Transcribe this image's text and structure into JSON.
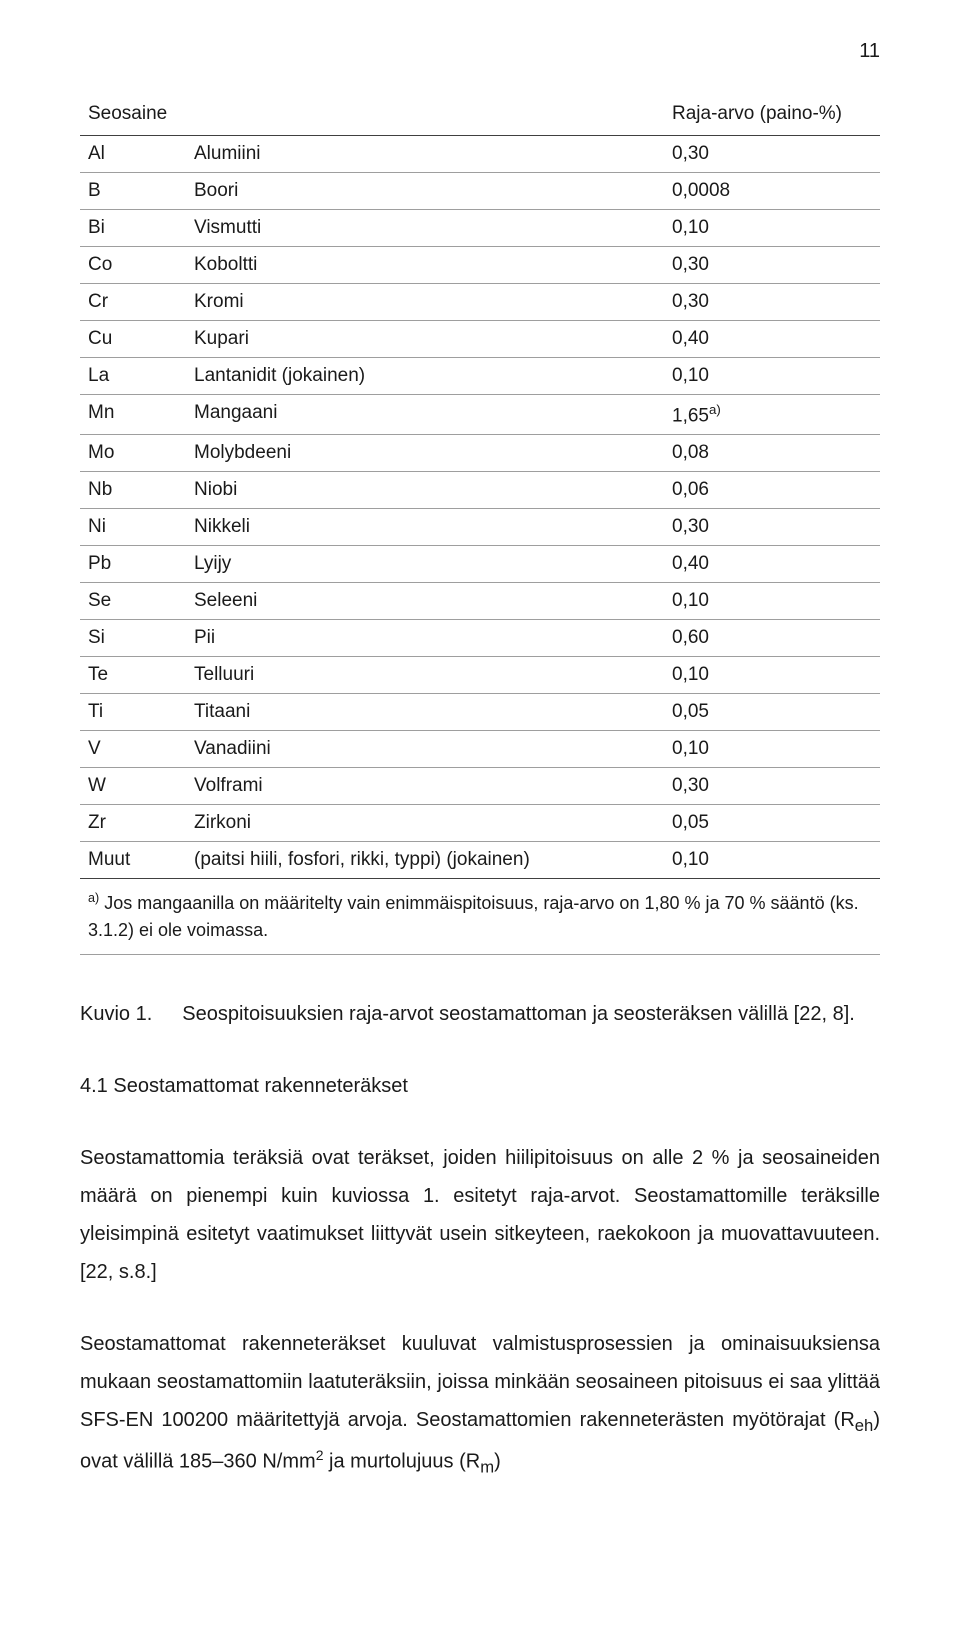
{
  "page_number": "11",
  "table": {
    "header_col1": "Seosaine",
    "header_col2": "Raja-arvo (paino-%)",
    "rows": [
      {
        "sym": "Al",
        "name": "Alumiini",
        "val": "0,30",
        "sup": ""
      },
      {
        "sym": "B",
        "name": "Boori",
        "val": "0,0008",
        "sup": ""
      },
      {
        "sym": "Bi",
        "name": "Vismutti",
        "val": "0,10",
        "sup": ""
      },
      {
        "sym": "Co",
        "name": "Koboltti",
        "val": "0,30",
        "sup": ""
      },
      {
        "sym": "Cr",
        "name": "Kromi",
        "val": "0,30",
        "sup": ""
      },
      {
        "sym": "Cu",
        "name": "Kupari",
        "val": "0,40",
        "sup": ""
      },
      {
        "sym": "La",
        "name": "Lantanidit (jokainen)",
        "val": "0,10",
        "sup": ""
      },
      {
        "sym": "Mn",
        "name": "Mangaani",
        "val": "1,65",
        "sup": "a)"
      },
      {
        "sym": "Mo",
        "name": "Molybdeeni",
        "val": "0,08",
        "sup": ""
      },
      {
        "sym": "Nb",
        "name": "Niobi",
        "val": "0,06",
        "sup": ""
      },
      {
        "sym": "Ni",
        "name": "Nikkeli",
        "val": "0,30",
        "sup": ""
      },
      {
        "sym": "Pb",
        "name": "Lyijy",
        "val": "0,40",
        "sup": ""
      },
      {
        "sym": "Se",
        "name": "Seleeni",
        "val": "0,10",
        "sup": ""
      },
      {
        "sym": "Si",
        "name": "Pii",
        "val": "0,60",
        "sup": ""
      },
      {
        "sym": "Te",
        "name": "Telluuri",
        "val": "0,10",
        "sup": ""
      },
      {
        "sym": "Ti",
        "name": "Titaani",
        "val": "0,05",
        "sup": ""
      },
      {
        "sym": "V",
        "name": "Vanadiini",
        "val": "0,10",
        "sup": ""
      },
      {
        "sym": "W",
        "name": "Volframi",
        "val": "0,30",
        "sup": ""
      },
      {
        "sym": "Zr",
        "name": "Zirkoni",
        "val": "0,05",
        "sup": ""
      },
      {
        "sym": "Muut",
        "name": "(paitsi hiili, fosfori, rikki, typpi) (jokainen)",
        "val": "0,10",
        "sup": ""
      }
    ],
    "footnote_sup": "a)",
    "footnote_text": " Jos mangaanilla on määritelty vain enimmäispitoisuus, raja-arvo on 1,80 % ja 70 % sääntö (ks. 3.1.2) ei ole voimassa."
  },
  "caption": {
    "label": "Kuvio 1.",
    "text": "Seospitoisuuksien raja-arvot seostamattoman ja seosteräksen välillä [22, 8]."
  },
  "heading": "4.1 Seostamattomat rakenneteräkset",
  "para1_a": "Seostamattomia teräksiä ovat teräkset, joiden hiilipitoisuus on alle 2 % ja seosaineiden määrä on pienempi kuin kuviossa 1. esitetyt raja-arvot. Seostamattomille teräksille yleisimpinä esitetyt vaatimukset liittyvät usein sitkeyteen, raekokoon ja muovattavuuteen. [22, s.8.]",
  "para2_a": "Seostamattomat rakenneteräkset kuuluvat valmistusprosessien ja ominaisuuksiensa mukaan seostamattomiin laatuteräksiin, joissa minkään seosaineen pitoisuus ei saa ylittää SFS-EN 100200 määritettyjä arvoja. Seostamattomien rakenneterästen myötörajat (R",
  "para2_sub1": "eh",
  "para2_b": ") ovat välillä 185–360 N/mm",
  "para2_sup1": "2",
  "para2_c": " ja murtolujuus (R",
  "para2_sub2": "m",
  "para2_d": ")"
}
